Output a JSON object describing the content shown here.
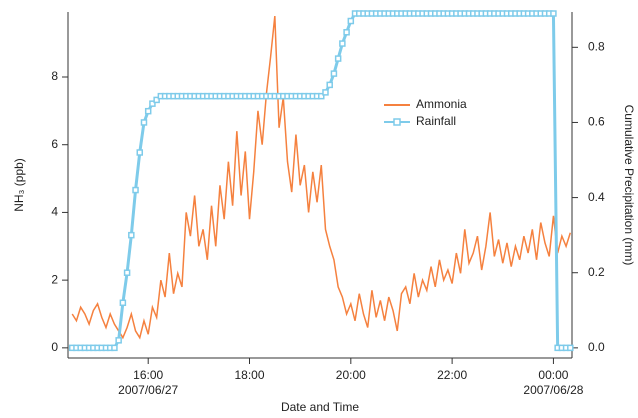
{
  "chart_data": {
    "type": "line",
    "x_label": "Date and Time",
    "y_label": "NH₃ (ppb)",
    "y2_label": "Cumulative Precipitation (mm)",
    "legend": "upper-right",
    "xlim": [
      "2007/06/27 14:25",
      "2007/06/28 00:22"
    ],
    "xticks": [
      {
        "value": "2007/06/27 16:00",
        "label": "16:00\n2007/06/27"
      },
      {
        "value": "2007/06/27 18:00",
        "label": "18:00"
      },
      {
        "value": "2007/06/27 20:00",
        "label": "20:00"
      },
      {
        "value": "2007/06/27 22:00",
        "label": "22:00"
      },
      {
        "value": "2007/06/28 00:00",
        "label": "00:00\n2007/06/28"
      }
    ],
    "ylim": [
      -0.3,
      9.92
    ],
    "yticks": [
      0,
      2,
      4,
      6,
      8
    ],
    "y2lim": [
      -0.027,
      0.894
    ],
    "y2ticks": [
      {
        "value": 0,
        "label": "0.0"
      },
      0.2,
      0.4,
      0.6,
      0.8
    ],
    "x": [
      "2007/06/27 14:30",
      "2007/06/27 14:35",
      "2007/06/27 14:40",
      "2007/06/27 14:45",
      "2007/06/27 14:50",
      "2007/06/27 14:55",
      "2007/06/27 15:00",
      "2007/06/27 15:05",
      "2007/06/27 15:10",
      "2007/06/27 15:15",
      "2007/06/27 15:20",
      "2007/06/27 15:25",
      "2007/06/27 15:30",
      "2007/06/27 15:35",
      "2007/06/27 15:40",
      "2007/06/27 15:45",
      "2007/06/27 15:50",
      "2007/06/27 15:55",
      "2007/06/27 16:00",
      "2007/06/27 16:05",
      "2007/06/27 16:10",
      "2007/06/27 16:15",
      "2007/06/27 16:20",
      "2007/06/27 16:25",
      "2007/06/27 16:30",
      "2007/06/27 16:35",
      "2007/06/27 16:40",
      "2007/06/27 16:45",
      "2007/06/27 16:50",
      "2007/06/27 16:55",
      "2007/06/27 17:00",
      "2007/06/27 17:05",
      "2007/06/27 17:10",
      "2007/06/27 17:15",
      "2007/06/27 17:20",
      "2007/06/27 17:25",
      "2007/06/27 17:30",
      "2007/06/27 17:35",
      "2007/06/27 17:40",
      "2007/06/27 17:45",
      "2007/06/27 17:50",
      "2007/06/27 17:55",
      "2007/06/27 18:00",
      "2007/06/27 18:05",
      "2007/06/27 18:10",
      "2007/06/27 18:15",
      "2007/06/27 18:20",
      "2007/06/27 18:25",
      "2007/06/27 18:30",
      "2007/06/27 18:35",
      "2007/06/27 18:40",
      "2007/06/27 18:45",
      "2007/06/27 18:50",
      "2007/06/27 18:55",
      "2007/06/27 19:00",
      "2007/06/27 19:05",
      "2007/06/27 19:10",
      "2007/06/27 19:15",
      "2007/06/27 19:20",
      "2007/06/27 19:25",
      "2007/06/27 19:30",
      "2007/06/27 19:35",
      "2007/06/27 19:40",
      "2007/06/27 19:45",
      "2007/06/27 19:50",
      "2007/06/27 19:55",
      "2007/06/27 20:00",
      "2007/06/27 20:05",
      "2007/06/27 20:10",
      "2007/06/27 20:15",
      "2007/06/27 20:20",
      "2007/06/27 20:25",
      "2007/06/27 20:30",
      "2007/06/27 20:35",
      "2007/06/27 20:40",
      "2007/06/27 20:45",
      "2007/06/27 20:50",
      "2007/06/27 20:55",
      "2007/06/27 21:00",
      "2007/06/27 21:05",
      "2007/06/27 21:10",
      "2007/06/27 21:15",
      "2007/06/27 21:20",
      "2007/06/27 21:25",
      "2007/06/27 21:30",
      "2007/06/27 21:35",
      "2007/06/27 21:40",
      "2007/06/27 21:45",
      "2007/06/27 21:50",
      "2007/06/27 21:55",
      "2007/06/27 22:00",
      "2007/06/27 22:05",
      "2007/06/27 22:10",
      "2007/06/27 22:15",
      "2007/06/27 22:20",
      "2007/06/27 22:25",
      "2007/06/27 22:30",
      "2007/06/27 22:35",
      "2007/06/27 22:40",
      "2007/06/27 22:45",
      "2007/06/27 22:50",
      "2007/06/27 22:55",
      "2007/06/27 23:00",
      "2007/06/27 23:05",
      "2007/06/27 23:10",
      "2007/06/27 23:15",
      "2007/06/27 23:20",
      "2007/06/27 23:25",
      "2007/06/27 23:30",
      "2007/06/27 23:35",
      "2007/06/27 23:40",
      "2007/06/27 23:45",
      "2007/06/27 23:50",
      "2007/06/27 23:55",
      "2007/06/28 00:00",
      "2007/06/28 00:05",
      "2007/06/28 00:10",
      "2007/06/28 00:15",
      "2007/06/28 00:20"
    ],
    "series": [
      {
        "name": "Ammonia",
        "color": "#f5813f",
        "values": [
          1.0,
          0.8,
          1.2,
          1.0,
          0.7,
          1.1,
          1.3,
          0.9,
          0.6,
          1.0,
          0.7,
          0.5,
          0.3,
          0.6,
          1.0,
          0.5,
          0.3,
          0.8,
          0.4,
          1.2,
          0.9,
          2.0,
          1.5,
          2.8,
          1.6,
          2.2,
          1.8,
          4.0,
          3.3,
          4.5,
          3.0,
          3.5,
          2.6,
          4.2,
          3.0,
          4.8,
          3.8,
          5.5,
          4.2,
          6.4,
          4.5,
          5.8,
          3.8,
          5.2,
          7.0,
          6.0,
          7.5,
          8.6,
          9.8,
          6.5,
          7.4,
          5.5,
          4.6,
          6.3,
          4.8,
          5.4,
          4.0,
          5.2,
          4.3,
          5.4,
          3.5,
          3.0,
          2.6,
          1.8,
          1.5,
          1.0,
          1.3,
          0.8,
          1.6,
          1.0,
          0.6,
          1.7,
          0.9,
          1.4,
          0.8,
          1.5,
          1.1,
          0.5,
          1.6,
          1.8,
          1.3,
          2.2,
          1.5,
          2.0,
          1.7,
          2.4,
          1.8,
          2.6,
          2.0,
          2.3,
          1.9,
          2.8,
          2.2,
          3.5,
          2.5,
          2.8,
          3.3,
          2.3,
          3.0,
          4.0,
          2.7,
          3.2,
          2.5,
          3.1,
          2.4,
          3.0,
          2.6,
          3.3,
          2.8,
          3.5,
          2.6,
          3.7,
          3.1,
          2.7,
          3.9,
          2.8,
          3.3,
          3.0,
          3.4
        ]
      },
      {
        "name": "Rainfall",
        "color": "#7ecbea",
        "axis": "y2",
        "marker": "square",
        "values": [
          0,
          0,
          0,
          0,
          0,
          0,
          0,
          0,
          0,
          0,
          0,
          0.02,
          0.12,
          0.2,
          0.3,
          0.42,
          0.52,
          0.6,
          0.63,
          0.65,
          0.66,
          0.67,
          0.67,
          0.67,
          0.67,
          0.67,
          0.67,
          0.67,
          0.67,
          0.67,
          0.67,
          0.67,
          0.67,
          0.67,
          0.67,
          0.67,
          0.67,
          0.67,
          0.67,
          0.67,
          0.67,
          0.67,
          0.67,
          0.67,
          0.67,
          0.67,
          0.67,
          0.67,
          0.67,
          0.67,
          0.67,
          0.67,
          0.67,
          0.67,
          0.67,
          0.67,
          0.67,
          0.67,
          0.67,
          0.67,
          0.68,
          0.7,
          0.73,
          0.77,
          0.81,
          0.84,
          0.87,
          0.89,
          0.89,
          0.89,
          0.89,
          0.89,
          0.89,
          0.89,
          0.89,
          0.89,
          0.89,
          0.89,
          0.89,
          0.89,
          0.89,
          0.89,
          0.89,
          0.89,
          0.89,
          0.89,
          0.89,
          0.89,
          0.89,
          0.89,
          0.89,
          0.89,
          0.89,
          0.89,
          0.89,
          0.89,
          0.89,
          0.89,
          0.89,
          0.89,
          0.89,
          0.89,
          0.89,
          0.89,
          0.89,
          0.89,
          0.89,
          0.89,
          0.89,
          0.89,
          0.89,
          0.89,
          0.89,
          0.89,
          0.89,
          0,
          0,
          0,
          0
        ]
      }
    ]
  }
}
